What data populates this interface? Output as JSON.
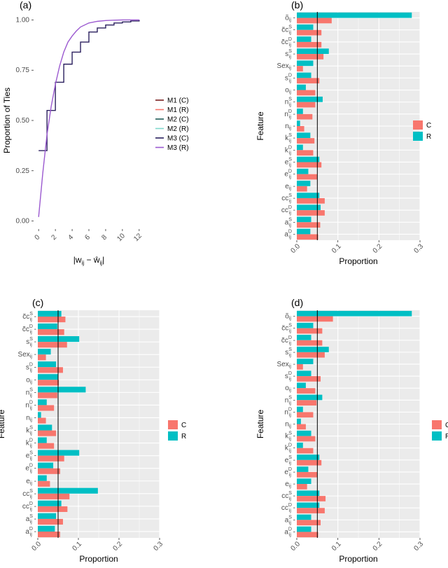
{
  "chart_data": [
    {
      "panel": "(a)",
      "type": "line",
      "title": "",
      "xlabel": "|w_ij − ŵ_ij|",
      "ylabel": "Proportion of Ties",
      "xlim": [
        -0.6,
        12.6
      ],
      "ylim": [
        -0.04,
        1.04
      ],
      "xticks": [
        0,
        2,
        4,
        6,
        8,
        10,
        12
      ],
      "yticks": [
        0.0,
        0.25,
        0.5,
        0.75,
        1.0
      ],
      "ytick_labels": [
        "0.00",
        "0.25",
        "0.50",
        "0.75",
        "1.00"
      ],
      "legend": {
        "position": "right",
        "entries": [
          {
            "label": "M1 (C)",
            "color": "#7a1f1f"
          },
          {
            "label": "M1 (R)",
            "color": "#f8766d"
          },
          {
            "label": "M2 (C)",
            "color": "#1f5b58"
          },
          {
            "label": "M2 (R)",
            "color": "#7fd8cc"
          },
          {
            "label": "M3 (C)",
            "color": "#2a1f5e"
          },
          {
            "label": "M3 (R)",
            "color": "#9b59d0"
          }
        ]
      },
      "series": [
        {
          "name": "M3 (C)",
          "color": "#2a1f5e",
          "style": "step",
          "x": [
            0,
            1,
            2,
            3,
            4,
            5,
            6,
            7,
            8,
            9,
            10,
            11,
            12
          ],
          "y": [
            0.35,
            0.55,
            0.69,
            0.78,
            0.84,
            0.89,
            0.94,
            0.96,
            0.975,
            0.985,
            0.99,
            0.995,
            1.0
          ]
        },
        {
          "name": "M3 (R)",
          "color": "#9b59d0",
          "style": "smooth",
          "x": [
            0,
            0.5,
            1,
            1.5,
            2,
            2.5,
            3,
            3.5,
            4,
            4.5,
            5,
            6,
            7,
            8,
            9,
            10,
            11,
            12
          ],
          "y": [
            0.02,
            0.24,
            0.43,
            0.57,
            0.68,
            0.77,
            0.84,
            0.89,
            0.92,
            0.945,
            0.965,
            0.985,
            0.993,
            0.997,
            0.999,
            1.0,
            1.0,
            1.0
          ]
        }
      ]
    },
    {
      "panel": "(b)",
      "type": "bar",
      "orientation": "horizontal",
      "xlabel": "Proportion",
      "ylabel": "Feature",
      "xlim": [
        0,
        0.3
      ],
      "xticks": [
        0.0,
        0.1,
        0.2,
        0.3
      ],
      "xtick_labels": [
        "0.0",
        "0.1",
        "0.2",
        "0.3"
      ],
      "reference_line": 0.05,
      "legend": {
        "position": "right",
        "entries": [
          {
            "label": "C",
            "color": "#f8766d"
          },
          {
            "label": "R",
            "color": "#00bfc4"
          }
        ]
      },
      "categories": [
        "õ_ij",
        "c̃c_ij^S",
        "c̃c_ij^D",
        "s_ij^S",
        "Sex_ij",
        "s_ij^D",
        "o_ij",
        "n_ij^S",
        "n_ij^D",
        "n_ij",
        "k_ij^S",
        "k_ij^D",
        "e_ij^S",
        "e_ij^D",
        "e_ij",
        "cc_ij^S",
        "cc_ij^D",
        "a_ij^S",
        "a_ij^D"
      ],
      "series": [
        {
          "name": "C",
          "color": "#f8766d",
          "values": [
            0.085,
            0.06,
            0.06,
            0.065,
            0.015,
            0.055,
            0.045,
            0.045,
            0.038,
            0.018,
            0.043,
            0.04,
            0.06,
            0.05,
            0.025,
            0.068,
            0.068,
            0.057,
            0.052
          ]
        },
        {
          "name": "R",
          "color": "#00bfc4",
          "values": [
            0.28,
            0.04,
            0.035,
            0.078,
            0.04,
            0.035,
            0.022,
            0.063,
            0.015,
            0.008,
            0.033,
            0.015,
            0.055,
            0.028,
            0.033,
            0.055,
            0.058,
            0.035,
            0.033
          ]
        }
      ]
    },
    {
      "panel": "(c)",
      "type": "bar",
      "orientation": "horizontal",
      "xlabel": "Proportion",
      "ylabel": "Feature",
      "xlim": [
        0,
        0.3
      ],
      "xticks": [
        0.0,
        0.1,
        0.2,
        0.3
      ],
      "xtick_labels": [
        "0.0",
        "0.1",
        "0.2",
        "0.3"
      ],
      "reference_line": 0.05,
      "legend": {
        "position": "right",
        "entries": [
          {
            "label": "C",
            "color": "#f8766d"
          },
          {
            "label": "R",
            "color": "#00bfc4"
          }
        ]
      },
      "categories": [
        "c̃c_ij^S",
        "c̃c_ij^D",
        "s_ij^S",
        "Sex_ij",
        "s_ij^D",
        "o_ij",
        "n_ij^S",
        "n_ij^D",
        "n_ij",
        "k_ij^S",
        "k_ij^D",
        "e_ij^S",
        "e_ij^D",
        "e_ij",
        "cc_ij^S",
        "cc_ij^D",
        "a_ij^S",
        "a_ij^D"
      ],
      "series": [
        {
          "name": "C",
          "color": "#f8766d",
          "values": [
            0.068,
            0.065,
            0.072,
            0.02,
            0.062,
            0.052,
            0.048,
            0.04,
            0.02,
            0.045,
            0.04,
            0.065,
            0.055,
            0.03,
            0.078,
            0.073,
            0.062,
            0.055
          ]
        },
        {
          "name": "R",
          "color": "#00bfc4",
          "values": [
            0.058,
            0.048,
            0.102,
            0.032,
            0.045,
            0.05,
            0.118,
            0.022,
            0.008,
            0.035,
            0.022,
            0.102,
            0.038,
            0.022,
            0.148,
            0.058,
            0.045,
            0.042
          ]
        }
      ]
    },
    {
      "panel": "(d)",
      "type": "bar",
      "orientation": "horizontal",
      "xlabel": "Proportion",
      "ylabel": "Feature",
      "xlim": [
        0,
        0.3
      ],
      "xticks": [
        0.0,
        0.1,
        0.2,
        0.3
      ],
      "xtick_labels": [
        "0.0",
        "0.1",
        "0.2",
        "0.3"
      ],
      "reference_line": 0.05,
      "legend": {
        "position": "right",
        "entries": [
          {
            "label": "C",
            "color": "#f8766d"
          },
          {
            "label": "R",
            "color": "#00bfc4"
          }
        ]
      },
      "categories": [
        "õ_ij",
        "c̃c_ij^S",
        "c̃c_ij^D",
        "s_ij^S",
        "Sex_ij",
        "s_ij^D",
        "o_ij",
        "n_ij^S",
        "n_ij^D",
        "n_ij",
        "k_ij^S",
        "k_ij^D",
        "e_ij^S",
        "e_ij^D",
        "e_ij",
        "cc_ij^S",
        "cc_ij^D",
        "a_ij^S",
        "a_ij^D"
      ],
      "series": [
        {
          "name": "C",
          "color": "#f8766d",
          "values": [
            0.088,
            0.062,
            0.062,
            0.068,
            0.015,
            0.058,
            0.045,
            0.048,
            0.04,
            0.022,
            0.045,
            0.04,
            0.06,
            0.05,
            0.025,
            0.07,
            0.068,
            0.058,
            0.052
          ]
        },
        {
          "name": "R",
          "color": "#00bfc4",
          "values": [
            0.28,
            0.04,
            0.035,
            0.078,
            0.04,
            0.035,
            0.022,
            0.062,
            0.015,
            0.01,
            0.035,
            0.015,
            0.055,
            0.028,
            0.035,
            0.055,
            0.055,
            0.035,
            0.035
          ]
        }
      ]
    }
  ]
}
